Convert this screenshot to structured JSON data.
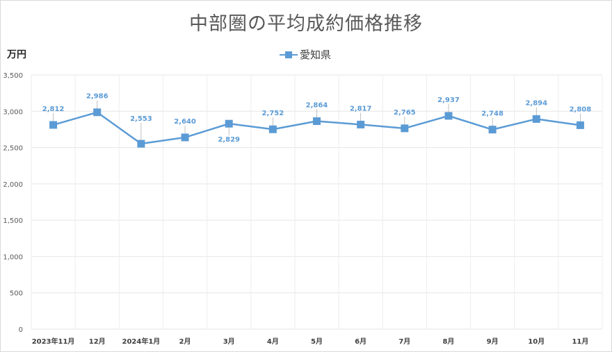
{
  "chart_data": {
    "type": "line",
    "title": "中部圏の平均成約価格推移",
    "ylabel": "万円",
    "xlabel": "",
    "ylim": [
      0,
      3500
    ],
    "yticks": [
      "0",
      "500",
      "1,000",
      "1,500",
      "2,000",
      "2,500",
      "3,000",
      "3,500"
    ],
    "ytick_values": [
      0,
      500,
      1000,
      1500,
      2000,
      2500,
      3000,
      3500
    ],
    "categories": [
      "2023年11月",
      "12月",
      "2024年1月",
      "2月",
      "3月",
      "4月",
      "5月",
      "6月",
      "7月",
      "8月",
      "9月",
      "10月",
      "11月"
    ],
    "series": [
      {
        "name": "愛知県",
        "color": "#5b9bd5",
        "values": [
          2812,
          2986,
          2553,
          2640,
          2829,
          2752,
          2864,
          2817,
          2765,
          2937,
          2748,
          2894,
          2808
        ],
        "labels": [
          "2,812",
          "2,986",
          "2,553",
          "2,640",
          "2,829",
          "2,752",
          "2,864",
          "2,817",
          "2,765",
          "2,937",
          "2,748",
          "2,894",
          "2,808"
        ]
      }
    ],
    "legend": "top",
    "grid": true
  }
}
